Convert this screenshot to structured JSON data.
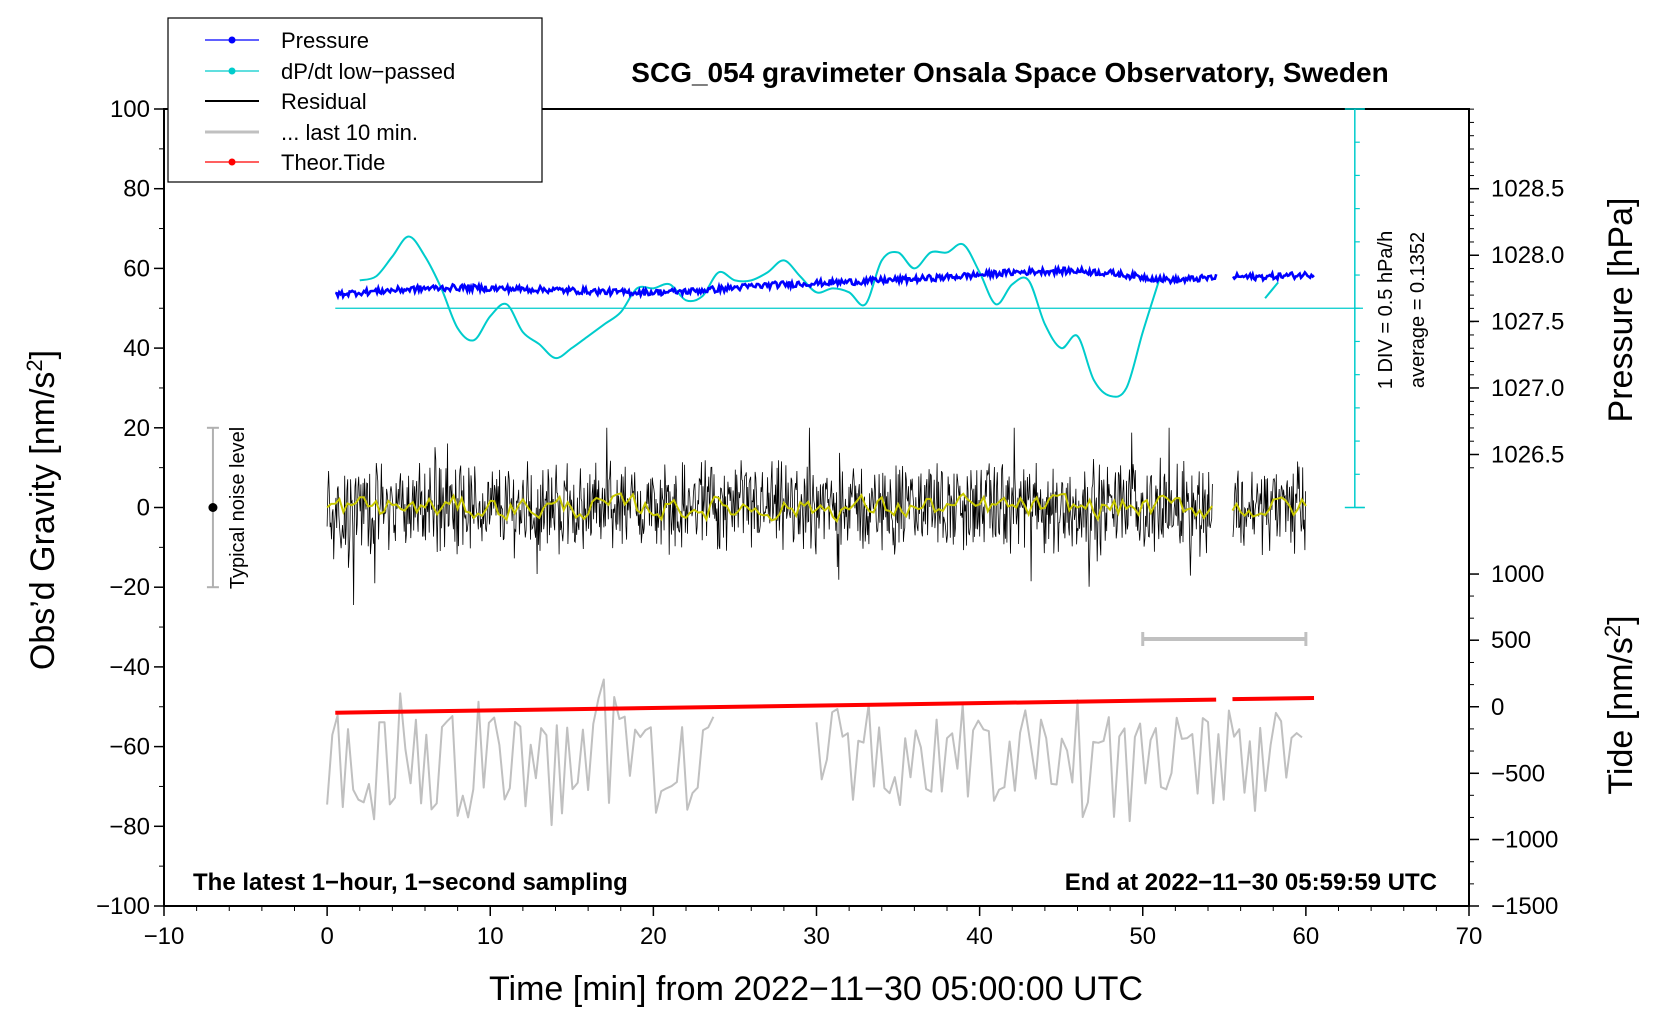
{
  "chart_data": {
    "type": "line",
    "title": "SCG_054 gravimeter Onsala Space Observatory, Sweden",
    "xlabel": "Time [min] from 2022−11−30 05:00:00 UTC",
    "ylabel_left": "Obs’d Gravity [nm/s",
    "ylabel_left_sup": "2",
    "ylabel_left_end": "]",
    "ylabel_right_pressure": "Pressure [hPa]",
    "ylabel_right_tide": "Tide [nm/s",
    "ylabel_right_tide_sup": "2",
    "ylabel_right_tide_end": "]",
    "xlim": [
      -10,
      70
    ],
    "ylim_left": [
      -100,
      100
    ],
    "x_ticks": [
      "−10",
      "0",
      "10",
      "20",
      "30",
      "40",
      "50",
      "60",
      "70"
    ],
    "x_tick_values": [
      -10,
      0,
      10,
      20,
      30,
      40,
      50,
      60,
      70
    ],
    "y_left_ticks": [
      "100",
      "80",
      "60",
      "40",
      "20",
      "0",
      "−20",
      "−40",
      "−60",
      "−80",
      "−100"
    ],
    "y_left_tick_values": [
      100,
      80,
      60,
      40,
      20,
      0,
      -20,
      -40,
      -60,
      -80,
      -100
    ],
    "pressure_axis": {
      "ticks": [
        "1028.5",
        "1028.0",
        "1027.5",
        "1027.0",
        "1026.5"
      ],
      "tick_values": [
        1028.5,
        1028.0,
        1027.5,
        1027.0,
        1026.5
      ],
      "left_equiv": [
        80,
        63.3,
        46.7,
        30,
        13.3
      ]
    },
    "tide_axis": {
      "ticks": [
        "1000",
        "500",
        "0",
        "−500",
        "−1000",
        "−1500"
      ],
      "tick_values": [
        1000,
        500,
        0,
        -500,
        -1000,
        -1500
      ],
      "left_equiv": [
        -16.7,
        -33.3,
        -50,
        -66.7,
        -83.3,
        -100
      ]
    },
    "legend": [
      {
        "label": "Pressure",
        "color": "#0000ff",
        "marker": true
      },
      {
        "label": "dP/dt low−passed",
        "color": "#00cccc",
        "marker": true
      },
      {
        "label": "Residual",
        "color": "#000000",
        "marker": false
      },
      {
        "label": "... last 10 min.",
        "color": "#c0c0c0",
        "marker": false
      },
      {
        "label": "Theor.Tide",
        "color": "#ff0000",
        "marker": true
      }
    ],
    "series": [
      {
        "name": "Pressure",
        "color": "#0000ff",
        "x": [
          0.5,
          2,
          4,
          6,
          8,
          10,
          12,
          14,
          16,
          18,
          20,
          22,
          24,
          26,
          28,
          30,
          32,
          34,
          36,
          38,
          40,
          42,
          44,
          46,
          48,
          50,
          52,
          54,
          55.5,
          57,
          58.5,
          60.5
        ],
        "y": [
          53.5,
          54,
          54.5,
          55,
          55.2,
          55,
          54.8,
          54.6,
          54.3,
          54,
          54,
          54.2,
          54.8,
          55.5,
          56,
          56.3,
          56.6,
          57,
          57.3,
          57.8,
          58.4,
          59,
          59.3,
          59.4,
          58.8,
          57.8,
          57,
          57.6,
          58,
          57.8,
          58.1,
          58.5
        ]
      },
      {
        "name": "dP/dt low−passed",
        "color": "#00cccc",
        "x": [
          2,
          3,
          4,
          5,
          6,
          7,
          8,
          9,
          10,
          11,
          12,
          13,
          14,
          15,
          16,
          17,
          18,
          19,
          20,
          21,
          22,
          23,
          24,
          25,
          26,
          27,
          28,
          29,
          30,
          31,
          32,
          33,
          34,
          35,
          36,
          37,
          38,
          39,
          40,
          41,
          42,
          43,
          44,
          45,
          46,
          47,
          48,
          49,
          50,
          51
        ],
        "y": [
          57,
          58,
          63,
          68,
          63,
          55,
          45,
          42,
          48,
          51,
          44,
          41,
          37.5,
          40,
          43,
          46,
          49,
          55,
          55,
          56,
          52,
          53,
          59,
          57,
          57,
          59,
          62,
          58,
          54,
          55,
          54,
          51,
          62,
          64,
          60,
          64,
          64,
          66,
          59,
          51,
          56,
          57,
          46,
          40,
          43,
          32,
          28,
          30,
          44,
          57
        ]
      },
      {
        "name": "dP/dt low−passed (end)",
        "color": "#00cccc",
        "x": [
          57.5,
          58.3
        ],
        "y": [
          52.5,
          56.5
        ]
      },
      {
        "name": "Residual",
        "color": "#000000",
        "x_range": [
          0,
          60
        ],
        "gap": [
          54.3,
          55.5
        ],
        "center": 0,
        "noise_span": [
          -26,
          20
        ]
      },
      {
        "name": "Residual smoothed",
        "color": "#c8c800",
        "x_range": [
          0,
          60
        ],
        "gap": [
          54.3,
          55.5
        ],
        "center": 0
      },
      {
        "name": "... last 10 min.",
        "color": "#c0c0c0",
        "segments": [
          [
            0,
            24
          ],
          [
            30,
            60
          ]
        ],
        "center": -64,
        "span": [
          -81,
          -41
        ]
      },
      {
        "name": "Theor.Tide",
        "color": "#ff0000",
        "x": [
          0.5,
          54.5,
          55.5,
          60.5
        ],
        "y": [
          -51.5,
          -48.2,
          -48.1,
          -47.8
        ]
      }
    ],
    "dpdt_zero_line": 50,
    "dpdt_scale_bar": {
      "label": "1 DIV = 0.5 hPa/h",
      "average_label": "average = 0.1352",
      "x": 63,
      "y_range": [
        0,
        100
      ]
    },
    "typical_noise": {
      "label": "Typical noise level",
      "x": -7,
      "y_range": [
        -20,
        20
      ]
    },
    "last10_bar": {
      "x_range": [
        50,
        60
      ],
      "y": -33
    },
    "footer_left": "The latest 1−hour, 1−second sampling",
    "footer_right": "End at 2022−11−30 05:59:59 UTC"
  }
}
